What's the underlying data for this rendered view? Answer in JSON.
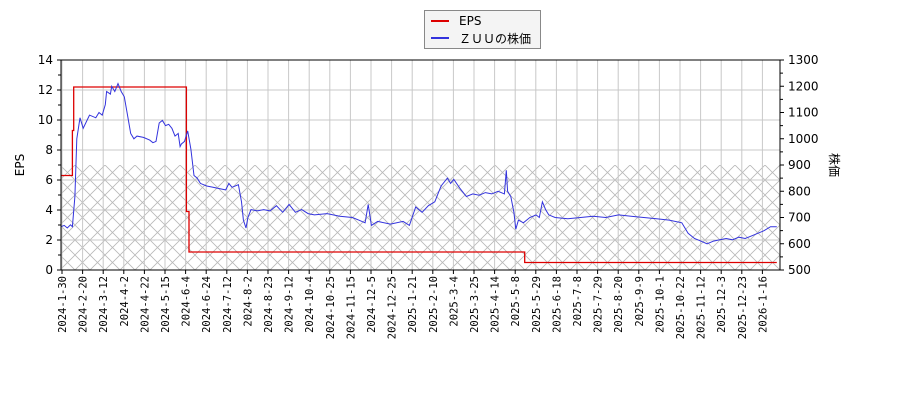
{
  "legend": {
    "items": [
      {
        "label": "EPS",
        "color": "#dd0000"
      },
      {
        "label": "ＺＵＵの株価",
        "color": "#3333dd"
      }
    ]
  },
  "chart_data": {
    "type": "line",
    "title": "",
    "xlabel": "",
    "ylabel": "EPS",
    "y2label": "株価",
    "grid": true,
    "legend_position": "top-center",
    "ylim": [
      0,
      14
    ],
    "y2lim": [
      500,
      1300
    ],
    "yticks": [
      0,
      2,
      4,
      6,
      8,
      10,
      12,
      14
    ],
    "y2ticks": [
      500,
      600,
      700,
      800,
      900,
      1000,
      1100,
      1200,
      1300
    ],
    "hatch_band": {
      "y_from": 0,
      "y_to": 7
    },
    "xtick_labels": [
      "2024-1-30",
      "2024-2-20",
      "2024-3-12",
      "2024-4-2",
      "2024-4-22",
      "2024-5-15",
      "2024-6-4",
      "2024-6-24",
      "2024-7-12",
      "2024-8-2",
      "2024-8-23",
      "2024-9-12",
      "2024-10-4",
      "2024-10-25",
      "2024-11-15",
      "2024-12-5",
      "2024-12-25",
      "2025-1-21",
      "2025-2-10",
      "2025-3-4",
      "2025-3-25",
      "2025-4-14",
      "2025-5-8",
      "2025-5-29",
      "2025-6-18",
      "2025-7-8",
      "2025-7-29",
      "2025-8-20",
      "2025-9-9",
      "2025-10-1",
      "2025-10-22",
      "2025-11-12",
      "2025-12-3",
      "2025-12-23",
      "2026-1-16"
    ],
    "series": [
      {
        "name": "EPS",
        "axis": "left",
        "color": "#dd0000",
        "step": true,
        "points": [
          [
            0,
            6.3
          ],
          [
            0.18,
            6.3
          ],
          [
            0.18,
            9.3
          ],
          [
            0.2,
            9.3
          ],
          [
            0.2,
            12.2
          ],
          [
            1.98,
            12.2
          ],
          [
            1.98,
            3.9
          ],
          [
            2.02,
            3.9
          ],
          [
            2.02,
            1.2
          ],
          [
            7.32,
            1.2
          ],
          [
            7.32,
            0.5
          ],
          [
            11.3,
            0.5
          ]
        ]
      },
      {
        "name": "ＺＵＵの株価",
        "axis": "right",
        "color": "#3333dd",
        "points": [
          [
            0,
            665
          ],
          [
            0.05,
            670
          ],
          [
            0.1,
            660
          ],
          [
            0.15,
            672
          ],
          [
            0.18,
            665
          ],
          [
            0.22,
            780
          ],
          [
            0.25,
            1000
          ],
          [
            0.3,
            1080
          ],
          [
            0.35,
            1040
          ],
          [
            0.45,
            1090
          ],
          [
            0.55,
            1080
          ],
          [
            0.6,
            1100
          ],
          [
            0.65,
            1090
          ],
          [
            0.7,
            1130
          ],
          [
            0.72,
            1180
          ],
          [
            0.78,
            1170
          ],
          [
            0.8,
            1200
          ],
          [
            0.85,
            1180
          ],
          [
            0.9,
            1210
          ],
          [
            0.95,
            1180
          ],
          [
            1.0,
            1160
          ],
          [
            1.05,
            1090
          ],
          [
            1.1,
            1020
          ],
          [
            1.15,
            1000
          ],
          [
            1.2,
            1010
          ],
          [
            1.3,
            1005
          ],
          [
            1.4,
            995
          ],
          [
            1.45,
            985
          ],
          [
            1.5,
            990
          ],
          [
            1.55,
            1060
          ],
          [
            1.6,
            1070
          ],
          [
            1.65,
            1050
          ],
          [
            1.7,
            1055
          ],
          [
            1.75,
            1040
          ],
          [
            1.8,
            1010
          ],
          [
            1.85,
            1020
          ],
          [
            1.88,
            970
          ],
          [
            1.9,
            980
          ],
          [
            1.95,
            990
          ],
          [
            2.0,
            1030
          ],
          [
            2.05,
            960
          ],
          [
            2.1,
            860
          ],
          [
            2.15,
            850
          ],
          [
            2.2,
            830
          ],
          [
            2.3,
            820
          ],
          [
            2.4,
            815
          ],
          [
            2.5,
            810
          ],
          [
            2.6,
            805
          ],
          [
            2.65,
            830
          ],
          [
            2.7,
            815
          ],
          [
            2.8,
            825
          ],
          [
            2.85,
            760
          ],
          [
            2.88,
            690
          ],
          [
            2.92,
            660
          ],
          [
            2.95,
            700
          ],
          [
            3.0,
            730
          ],
          [
            3.1,
            725
          ],
          [
            3.2,
            730
          ],
          [
            3.3,
            725
          ],
          [
            3.4,
            745
          ],
          [
            3.5,
            720
          ],
          [
            3.6,
            750
          ],
          [
            3.7,
            720
          ],
          [
            3.8,
            730
          ],
          [
            3.9,
            715
          ],
          [
            4.0,
            710
          ],
          [
            4.2,
            715
          ],
          [
            4.4,
            705
          ],
          [
            4.6,
            700
          ],
          [
            4.7,
            690
          ],
          [
            4.8,
            680
          ],
          [
            4.85,
            750
          ],
          [
            4.9,
            670
          ],
          [
            5.0,
            685
          ],
          [
            5.2,
            675
          ],
          [
            5.4,
            685
          ],
          [
            5.5,
            670
          ],
          [
            5.6,
            740
          ],
          [
            5.7,
            720
          ],
          [
            5.8,
            745
          ],
          [
            5.9,
            760
          ],
          [
            6.0,
            820
          ],
          [
            6.1,
            850
          ],
          [
            6.15,
            830
          ],
          [
            6.2,
            845
          ],
          [
            6.3,
            810
          ],
          [
            6.4,
            780
          ],
          [
            6.5,
            790
          ],
          [
            6.6,
            785
          ],
          [
            6.7,
            795
          ],
          [
            6.8,
            790
          ],
          [
            6.9,
            800
          ],
          [
            7.0,
            790
          ],
          [
            7.03,
            880
          ],
          [
            7.05,
            800
          ],
          [
            7.1,
            780
          ],
          [
            7.15,
            720
          ],
          [
            7.18,
            655
          ],
          [
            7.22,
            690
          ],
          [
            7.3,
            680
          ],
          [
            7.4,
            700
          ],
          [
            7.5,
            710
          ],
          [
            7.55,
            700
          ],
          [
            7.6,
            760
          ],
          [
            7.65,
            730
          ],
          [
            7.7,
            710
          ],
          [
            7.8,
            700
          ],
          [
            8.0,
            695
          ],
          [
            8.2,
            700
          ],
          [
            8.4,
            705
          ],
          [
            8.6,
            700
          ],
          [
            8.8,
            710
          ],
          [
            9.0,
            705
          ],
          [
            9.2,
            700
          ],
          [
            9.4,
            695
          ],
          [
            9.6,
            690
          ],
          [
            9.8,
            680
          ],
          [
            9.9,
            640
          ],
          [
            10.0,
            620
          ],
          [
            10.1,
            610
          ],
          [
            10.2,
            600
          ],
          [
            10.3,
            610
          ],
          [
            10.4,
            615
          ],
          [
            10.5,
            620
          ],
          [
            10.6,
            615
          ],
          [
            10.7,
            625
          ],
          [
            10.8,
            620
          ],
          [
            10.9,
            630
          ],
          [
            11.0,
            640
          ],
          [
            11.1,
            650
          ],
          [
            11.2,
            665
          ],
          [
            11.3,
            665
          ]
        ]
      }
    ]
  }
}
